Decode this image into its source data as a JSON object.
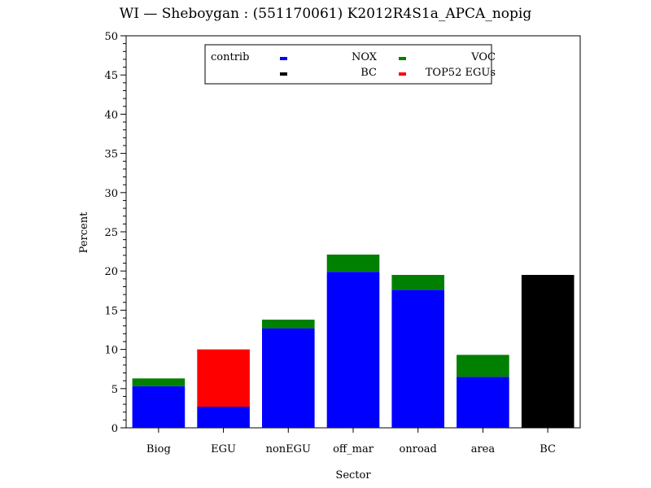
{
  "chart_data": {
    "type": "bar",
    "stacked": true,
    "title": "WI — Sheboygan : (551170061) K2012R4S1a_APCA_nopig",
    "xlabel": "Sector",
    "ylabel": "Percent",
    "ylim": [
      0,
      50
    ],
    "yticks": [
      0,
      5,
      10,
      15,
      20,
      25,
      30,
      35,
      40,
      45,
      50
    ],
    "categories": [
      "Biog",
      "EGU",
      "nonEGU",
      "off_mar",
      "onroad",
      "area",
      "BC"
    ],
    "series": [
      {
        "name": "NOX",
        "color": "#0000ff",
        "values": [
          5.3,
          2.7,
          12.7,
          19.9,
          17.6,
          6.5,
          0
        ]
      },
      {
        "name": "VOC",
        "color": "#008000",
        "values": [
          1.0,
          0,
          1.1,
          2.2,
          1.9,
          2.8,
          0
        ]
      },
      {
        "name": "TOP52 EGUs",
        "color": "#ff0000",
        "values": [
          0,
          7.3,
          0,
          0,
          0,
          0,
          0
        ]
      },
      {
        "name": "BC",
        "color": "#000000",
        "values": [
          0,
          0,
          0,
          0,
          0,
          0,
          19.5
        ]
      }
    ],
    "legend": {
      "title": "contrib",
      "placement": "top-center inside plot",
      "entries": [
        {
          "name": "NOX",
          "color": "#0000ff"
        },
        {
          "name": "VOC",
          "color": "#008000"
        },
        {
          "name": "BC",
          "color": "#000000"
        },
        {
          "name": "TOP52 EGUs",
          "color": "#ff0000"
        }
      ]
    },
    "grid": false
  }
}
